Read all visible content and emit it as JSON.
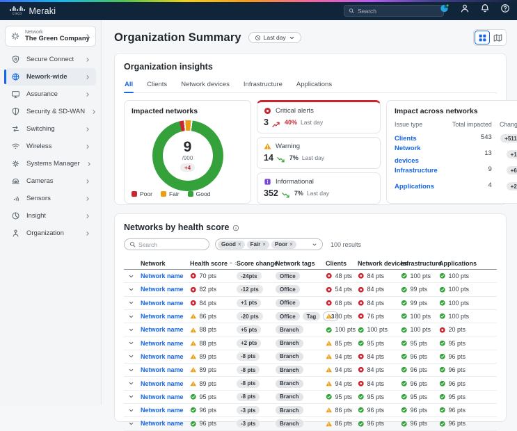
{
  "navbar": {
    "brand": "Meraki",
    "logo": "cisco-logo",
    "search_placeholder": "Search",
    "icons": [
      "status-donut-icon",
      "user-icon",
      "bell-icon",
      "help-icon"
    ]
  },
  "sidebar": {
    "network_label": "Network",
    "network_name": "The Green Company",
    "items": [
      {
        "label": "Secure Connect",
        "icon": "shield",
        "active": false
      },
      {
        "label": "Nework-wide",
        "icon": "globe",
        "active": true
      },
      {
        "label": "Assurance",
        "icon": "monitor",
        "active": false
      },
      {
        "label": "Security & SD-WAN",
        "icon": "shield-half",
        "active": false
      },
      {
        "label": "Switching",
        "icon": "switch-arrows",
        "active": false
      },
      {
        "label": "Wireless",
        "icon": "wifi",
        "active": false
      },
      {
        "label": "Systems Manager",
        "icon": "gear",
        "active": false
      },
      {
        "label": "Cameras",
        "icon": "camera",
        "active": false
      },
      {
        "label": "Sensors",
        "icon": "sensor",
        "active": false
      },
      {
        "label": "Insight",
        "icon": "insight",
        "active": false
      },
      {
        "label": "Organization",
        "icon": "org",
        "active": false
      }
    ]
  },
  "header": {
    "title": "Organization Summary",
    "time_range": "Last day"
  },
  "insights": {
    "title": "Organization insights",
    "tabs": [
      "All",
      "Clients",
      "Network devices",
      "Infrastructure",
      "Applications"
    ],
    "active_tab": "All",
    "impacted_networks": {
      "title": "Impacted networks",
      "center_value": "9",
      "center_total": "/900",
      "center_change": "+4",
      "chart_data": {
        "type": "pie",
        "title": "Impacted networks",
        "categories": [
          "Poor",
          "Fair",
          "Good"
        ],
        "values_pct_estimate": [
          2,
          2.6,
          94
        ],
        "colors": [
          "#cc2531",
          "#eb9d14",
          "#34a13a"
        ],
        "center_label": "9 /900 (+4)",
        "legend_position": "bottom"
      },
      "legend": [
        {
          "label": "Poor",
          "color": "#cc2531"
        },
        {
          "label": "Fair",
          "color": "#eb9d14"
        },
        {
          "label": "Good",
          "color": "#34a13a"
        }
      ]
    },
    "alerts": [
      {
        "type": "Critical alerts",
        "icon": "critical",
        "value": "3",
        "trend": "up",
        "percent": "40%",
        "period": "Last day"
      },
      {
        "type": "Warning",
        "icon": "warning",
        "value": "14",
        "trend": "down",
        "percent": "7%",
        "period": "Last day"
      },
      {
        "type": "Informational",
        "icon": "info",
        "value": "352",
        "trend": "down",
        "percent": "7%",
        "period": "Last day"
      }
    ],
    "impact_table": {
      "title": "Impact across networks",
      "columns": [
        "Issue type",
        "Total impacted",
        "Change"
      ],
      "rows": [
        {
          "type": "Clients",
          "total": "543",
          "change": "+511"
        },
        {
          "type": "Network devices",
          "total": "13",
          "change": "+1"
        },
        {
          "type": "Infrastructure",
          "total": "9",
          "change": "+6"
        },
        {
          "type": "Applications",
          "total": "4",
          "change": "+2"
        }
      ]
    }
  },
  "health_table": {
    "title": "Networks by health score",
    "search_placeholder": "Search",
    "filter_chips": [
      "Good",
      "Fair",
      "Poor"
    ],
    "results": "100 results",
    "columns": [
      "Network",
      "Health score",
      "Score change",
      "Network tags",
      "Clients",
      "Network devices",
      "Infrastructure",
      "Applications"
    ],
    "rows": [
      {
        "network": "Network name",
        "health": {
          "s": "crit",
          "v": "70 pts"
        },
        "score_change": "-24pts",
        "tags": [
          "Office"
        ],
        "clients": {
          "s": "crit",
          "v": "48 pts"
        },
        "devices": {
          "s": "crit",
          "v": "84 pts"
        },
        "infra": {
          "s": "good",
          "v": "100 pts"
        },
        "apps": {
          "s": "good",
          "v": "100 pts"
        }
      },
      {
        "network": "Network name",
        "health": {
          "s": "crit",
          "v": "82 pts"
        },
        "score_change": "-12 pts",
        "tags": [
          "Office"
        ],
        "clients": {
          "s": "crit",
          "v": "54 pts"
        },
        "devices": {
          "s": "crit",
          "v": "84 pts"
        },
        "infra": {
          "s": "good",
          "v": "99 pts"
        },
        "apps": {
          "s": "good",
          "v": "100 pts"
        }
      },
      {
        "network": "Network name",
        "health": {
          "s": "crit",
          "v": "84 pts"
        },
        "score_change": "+1 pts",
        "tags": [
          "Office"
        ],
        "clients": {
          "s": "crit",
          "v": "68 pts"
        },
        "devices": {
          "s": "crit",
          "v": "84 pts"
        },
        "infra": {
          "s": "good",
          "v": "99 pts"
        },
        "apps": {
          "s": "good",
          "v": "100 pts"
        }
      },
      {
        "network": "Network name",
        "health": {
          "s": "warn",
          "v": "86 pts"
        },
        "score_change": "-20 pts",
        "tags": [
          "Office",
          "Tag",
          "+3"
        ],
        "clients": {
          "s": "warn",
          "v": "80 pts"
        },
        "devices": {
          "s": "crit",
          "v": "76 pts"
        },
        "infra": {
          "s": "good",
          "v": "100 pts"
        },
        "apps": {
          "s": "good",
          "v": "100 pts"
        }
      },
      {
        "network": "Network name",
        "health": {
          "s": "warn",
          "v": "88 pts"
        },
        "score_change": "+5 pts",
        "tags": [
          "Branch"
        ],
        "clients": {
          "s": "good",
          "v": "100 pts"
        },
        "devices": {
          "s": "good",
          "v": "100 pts"
        },
        "infra": {
          "s": "good",
          "v": "100 pts"
        },
        "apps": {
          "s": "crit",
          "v": "20 pts"
        }
      },
      {
        "network": "Network name",
        "health": {
          "s": "warn",
          "v": "88 pts"
        },
        "score_change": "+2 pts",
        "tags": [
          "Branch"
        ],
        "clients": {
          "s": "warn",
          "v": "85 pts"
        },
        "devices": {
          "s": "good",
          "v": "95 pts"
        },
        "infra": {
          "s": "good",
          "v": "95 pts"
        },
        "apps": {
          "s": "good",
          "v": "95 pts"
        }
      },
      {
        "network": "Network name",
        "health": {
          "s": "warn",
          "v": "89 pts"
        },
        "score_change": "-8 pts",
        "tags": [
          "Branch"
        ],
        "clients": {
          "s": "warn",
          "v": "94 pts"
        },
        "devices": {
          "s": "crit",
          "v": "84 pts"
        },
        "infra": {
          "s": "good",
          "v": "96 pts"
        },
        "apps": {
          "s": "good",
          "v": "96 pts"
        }
      },
      {
        "network": "Network name",
        "health": {
          "s": "warn",
          "v": "89 pts"
        },
        "score_change": "-8 pts",
        "tags": [
          "Branch"
        ],
        "clients": {
          "s": "warn",
          "v": "94 pts"
        },
        "devices": {
          "s": "crit",
          "v": "84 pts"
        },
        "infra": {
          "s": "good",
          "v": "96 pts"
        },
        "apps": {
          "s": "good",
          "v": "96 pts"
        }
      },
      {
        "network": "Network name",
        "health": {
          "s": "warn",
          "v": "89 pts"
        },
        "score_change": "-8 pts",
        "tags": [
          "Branch"
        ],
        "clients": {
          "s": "warn",
          "v": "94 pts"
        },
        "devices": {
          "s": "crit",
          "v": "84 pts"
        },
        "infra": {
          "s": "good",
          "v": "96 pts"
        },
        "apps": {
          "s": "good",
          "v": "96 pts"
        }
      },
      {
        "network": "Network name",
        "health": {
          "s": "good",
          "v": "95 pts"
        },
        "score_change": "-8 pts",
        "tags": [
          "Branch"
        ],
        "clients": {
          "s": "good",
          "v": "95 pts"
        },
        "devices": {
          "s": "good",
          "v": "95 pts"
        },
        "infra": {
          "s": "good",
          "v": "95 pts"
        },
        "apps": {
          "s": "good",
          "v": "95 pts"
        }
      },
      {
        "network": "Network name",
        "health": {
          "s": "good",
          "v": "96 pts"
        },
        "score_change": "-3 pts",
        "tags": [
          "Branch"
        ],
        "clients": {
          "s": "warn",
          "v": "86 pts"
        },
        "devices": {
          "s": "good",
          "v": "96 pts"
        },
        "infra": {
          "s": "good",
          "v": "96 pts"
        },
        "apps": {
          "s": "good",
          "v": "96 pts"
        }
      },
      {
        "network": "Network name",
        "health": {
          "s": "good",
          "v": "96 pts"
        },
        "score_change": "-3 pts",
        "tags": [
          "Branch"
        ],
        "clients": {
          "s": "warn",
          "v": "86 pts"
        },
        "devices": {
          "s": "good",
          "v": "96 pts"
        },
        "infra": {
          "s": "good",
          "v": "96 pts"
        },
        "apps": {
          "s": "good",
          "v": "96 pts"
        }
      }
    ]
  },
  "colors": {
    "accent_blue": "#1565e8",
    "critical_red": "#cc2531",
    "warning_amber": "#eb9d14",
    "good_green": "#34a13a",
    "info_purple": "#7645d9",
    "navbar_navy": "#10243a"
  }
}
